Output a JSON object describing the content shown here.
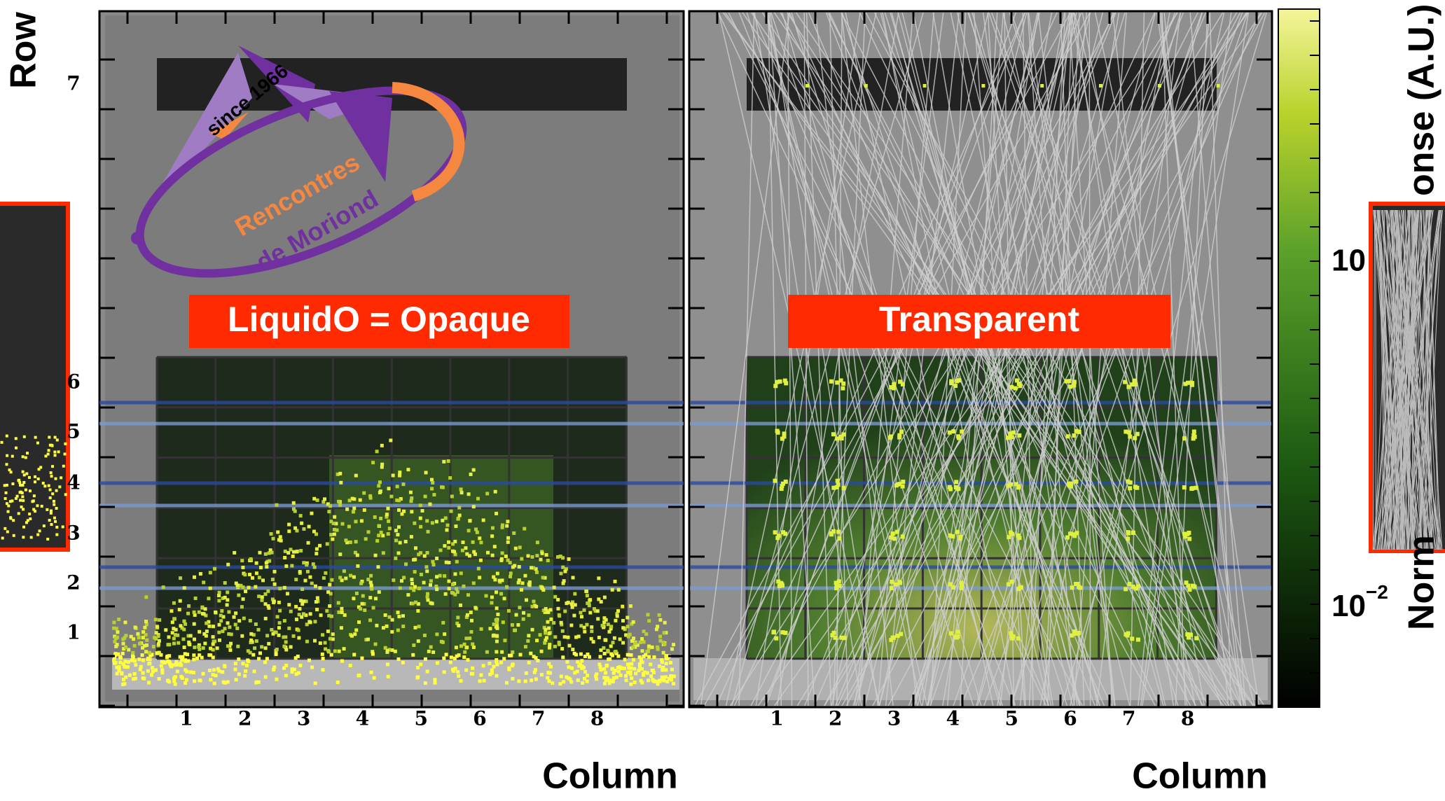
{
  "row_axis": {
    "label": "Row",
    "tick_labels": [
      "7",
      "6",
      "5",
      "4",
      "3",
      "2",
      "1"
    ]
  },
  "panels": [
    {
      "label": "LiquidO = Opaque",
      "x_label": "Column",
      "column_labels": [
        "1",
        "2",
        "3",
        "4",
        "5",
        "6",
        "7",
        "8"
      ]
    },
    {
      "label": "Transparent",
      "x_label": "Column",
      "column_labels": [
        "1",
        "2",
        "3",
        "4",
        "5",
        "6",
        "7",
        "8"
      ]
    }
  ],
  "colorbar": {
    "tick_labels": [
      {
        "base": "10",
        "exponent": "−2"
      },
      {
        "base": "10"
      }
    ],
    "label_parts": [
      "Norm",
      "onse (A.U.)"
    ]
  },
  "logo": {
    "since": "since 1966",
    "name": [
      "Rencontres",
      "de Moriond"
    ]
  }
}
